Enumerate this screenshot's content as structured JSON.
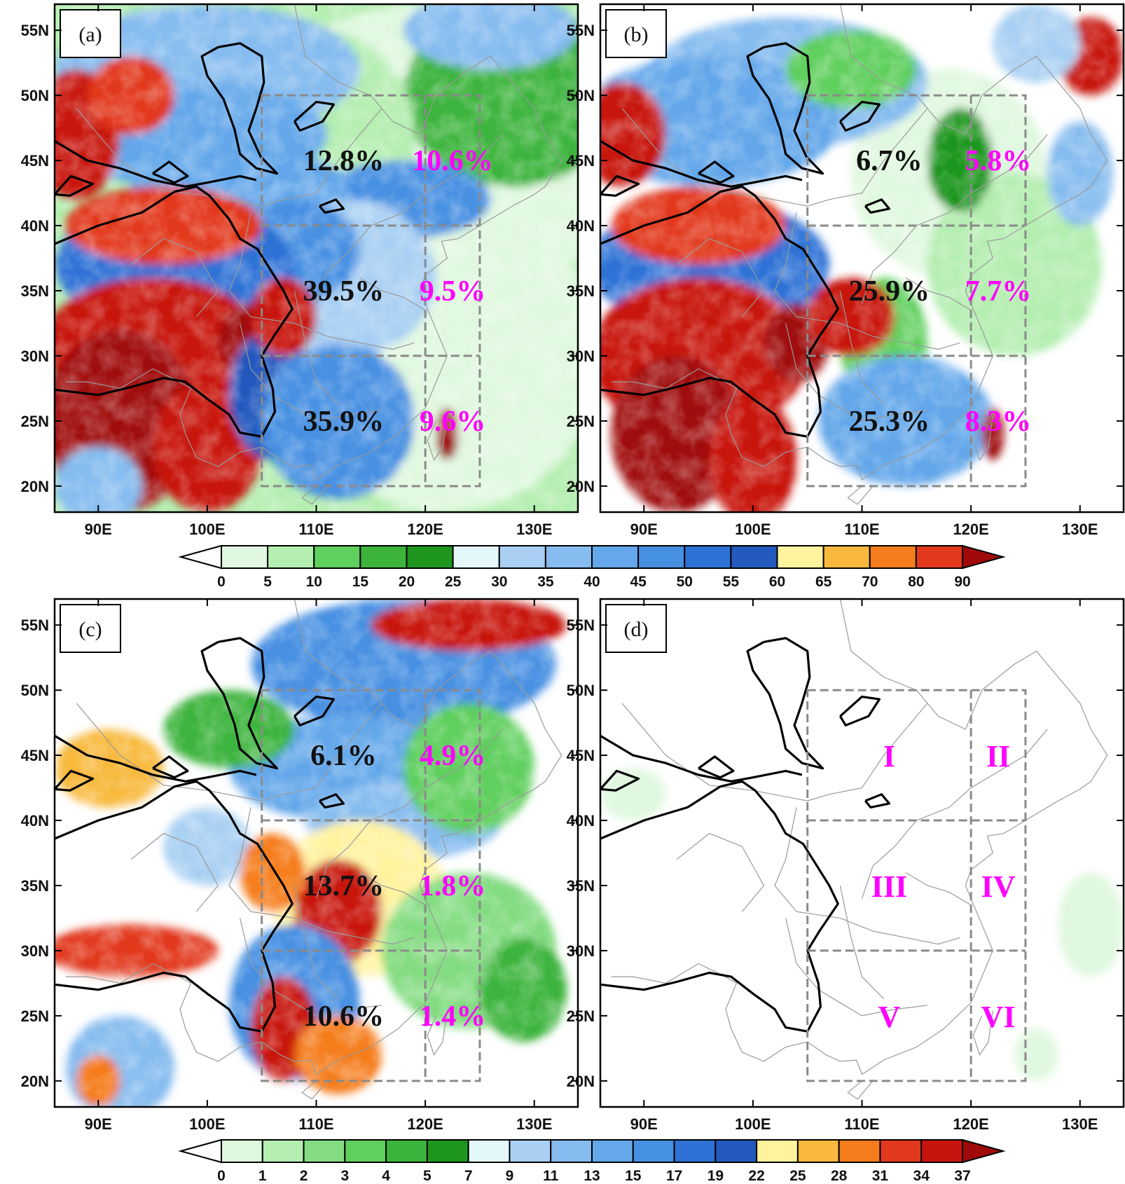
{
  "figure": {
    "panels": [
      {
        "tag": "(a)",
        "pattern": "a",
        "boxes": [
          {
            "main": "12.8%",
            "sub": "10.6%"
          },
          {
            "main": "39.5%",
            "sub": "9.5%"
          },
          {
            "main": "35.9%",
            "sub": "9.6%"
          }
        ]
      },
      {
        "tag": "(b)",
        "pattern": "b",
        "boxes": [
          {
            "main": "6.7%",
            "sub": "5.8%"
          },
          {
            "main": "25.9%",
            "sub": "7.7%"
          },
          {
            "main": "25.3%",
            "sub": "8.3%"
          }
        ]
      },
      {
        "tag": "(c)",
        "pattern": "c",
        "boxes": [
          {
            "main": "6.1%",
            "sub": "4.9%"
          },
          {
            "main": "13.7%",
            "sub": "1.8%"
          },
          {
            "main": "10.6%",
            "sub": "1.4%"
          }
        ]
      },
      {
        "tag": "(d)",
        "pattern": "d",
        "regions": [
          "I",
          "II",
          "III",
          "IV",
          "V",
          "VI"
        ]
      }
    ],
    "lat_ticks": [
      "55N",
      "50N",
      "45N",
      "40N",
      "35N",
      "30N",
      "25N",
      "20N"
    ],
    "lat_values": [
      55,
      50,
      45,
      40,
      35,
      30,
      25,
      20
    ],
    "lon_ticks": [
      "90E",
      "100E",
      "110E",
      "120E",
      "130E"
    ],
    "lon_values": [
      90,
      100,
      110,
      120,
      130
    ],
    "lon_range": [
      86,
      134
    ],
    "lat_range": [
      18,
      57
    ],
    "region_boxes": {
      "outer_lon": [
        105,
        125
      ],
      "split_lon": 120,
      "lat_bands": [
        [
          40,
          50
        ],
        [
          30,
          40
        ],
        [
          20,
          30
        ]
      ]
    },
    "colorbar_top": {
      "labels": [
        "0",
        "5",
        "10",
        "15",
        "20",
        "25",
        "30",
        "35",
        "40",
        "45",
        "50",
        "55",
        "60",
        "65",
        "70",
        "80",
        "90"
      ],
      "colors": [
        "#ffffff",
        "#e0f8df",
        "#b4eeb0",
        "#5fcf5d",
        "#3cb43c",
        "#1e961e",
        "#e4f8fb",
        "#a9d0f3",
        "#86bcef",
        "#64a7ea",
        "#4690e2",
        "#2e72d6",
        "#2459be",
        "#fff39e",
        "#f8b93e",
        "#f57d1c",
        "#e2381c",
        "#c8140f",
        "#a00a0a"
      ]
    },
    "colorbar_bottom": {
      "labels": [
        "0",
        "1",
        "2",
        "3",
        "4",
        "5",
        "7",
        "9",
        "11",
        "13",
        "15",
        "17",
        "19",
        "22",
        "25",
        "28",
        "31",
        "34",
        "37"
      ],
      "colors": [
        "#ffffff",
        "#e0f8df",
        "#b4eeb0",
        "#84dc82",
        "#5fcf5d",
        "#3cb43c",
        "#1e961e",
        "#e4f8fb",
        "#a9d0f3",
        "#86bcef",
        "#64a7ea",
        "#4690e2",
        "#2e72d6",
        "#2459be",
        "#fff39e",
        "#f8b93e",
        "#f57d1c",
        "#e2381c",
        "#c8140f",
        "#a00a0a"
      ]
    }
  }
}
